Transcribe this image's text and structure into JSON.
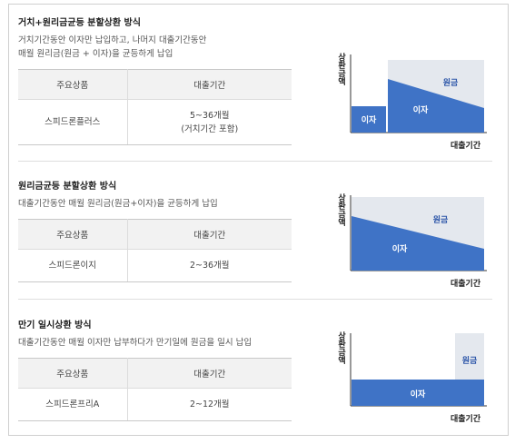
{
  "sections": [
    {
      "title": "거치+원리금균등 분할상환 방식",
      "desc_lines": [
        "거치기간동안 이자만 납입하고, 나머지 대출기간동안",
        "매월 원리금(원금 + 이자)을 균등하게 납입"
      ],
      "table": {
        "headers": [
          "주요상품",
          "대출기간"
        ],
        "rows": [
          {
            "product": "스피드론플러스",
            "period_lines": [
              "5~36개월",
              "(거치기간 포함)"
            ]
          }
        ]
      },
      "chart": {
        "y_label": "상환금액",
        "x_label": "대출기간",
        "labels": [
          "이자",
          "이자",
          "원금"
        ]
      }
    },
    {
      "title": "원리금균등 분할상환 방식",
      "desc_lines": [
        "대출기간동안 매월 원리금(원금+이자)을 균등하게 납입"
      ],
      "table": {
        "headers": [
          "주요상품",
          "대출기간"
        ],
        "rows": [
          {
            "product": "스피드론이지",
            "period_lines": [
              "2~36개월"
            ]
          }
        ]
      },
      "chart": {
        "y_label": "상환금액",
        "x_label": "대출기간",
        "labels": [
          "원금",
          "이자"
        ]
      }
    },
    {
      "title": "만기 일시상환 방식",
      "desc_lines": [
        "대출기간동안 매월 이자만 납부하다가 만기일에 원금을 일시 납입"
      ],
      "table": {
        "headers": [
          "주요상품",
          "대출기간"
        ],
        "rows": [
          {
            "product": "스피드론프리A",
            "period_lines": [
              "2~12개월"
            ]
          }
        ]
      },
      "chart": {
        "y_label": "상환금액",
        "x_label": "대출기간",
        "labels": [
          "원금",
          "이자"
        ]
      }
    }
  ],
  "colors": {
    "interest": "#3f73c6",
    "principal": "#e4e8ee",
    "principal_text": "#2b55a8"
  }
}
